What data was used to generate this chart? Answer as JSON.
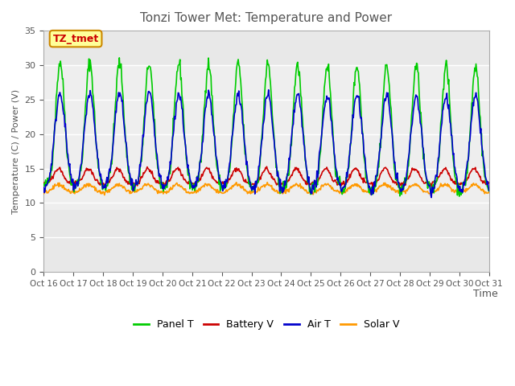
{
  "title": "Tonzi Tower Met: Temperature and Power",
  "xlabel": "Time",
  "ylabel": "Temperature (C) / Power (V)",
  "ylim": [
    0,
    35
  ],
  "yticks": [
    0,
    5,
    10,
    15,
    20,
    25,
    30,
    35
  ],
  "legend_labels": [
    "Panel T",
    "Battery V",
    "Air T",
    "Solar V"
  ],
  "legend_colors": [
    "#00cc00",
    "#cc0000",
    "#0000cc",
    "#ff9900"
  ],
  "xtick_labels": [
    "Oct 16",
    "Oct 17",
    "Oct 18",
    "Oct 19",
    "Oct 20",
    "Oct 21",
    "Oct 22",
    "Oct 23",
    "Oct 24",
    "Oct 25",
    "Oct 26",
    "Oct 27",
    "Oct 28",
    "Oct 29",
    "Oct 30",
    "Oct 31"
  ],
  "annotation_text": "TZ_tmet",
  "annotation_color": "#cc0000",
  "annotation_bg": "#ffff99",
  "title_color": "#555555",
  "num_days": 15
}
